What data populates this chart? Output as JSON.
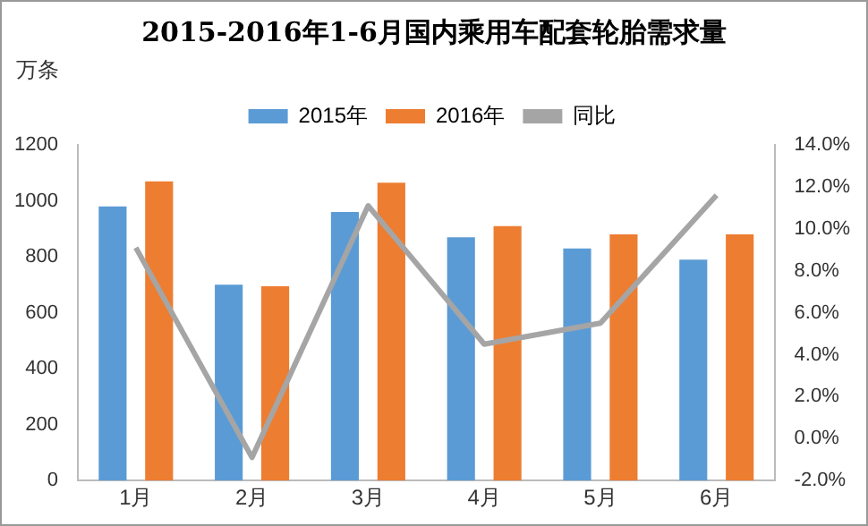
{
  "chart_data": {
    "type": "bar",
    "title": "2015-2016年1-6月国内乘用车配套轮胎需求量",
    "ylabel": "万条",
    "categories": [
      "1月",
      "2月",
      "3月",
      "4月",
      "5月",
      "6月"
    ],
    "series": [
      {
        "name": "2015年",
        "color": "#5b9bd5",
        "values": [
          980,
          700,
          960,
          870,
          830,
          790
        ]
      },
      {
        "name": "2016年",
        "color": "#ed7d31",
        "values": [
          1070,
          695,
          1065,
          910,
          880,
          880
        ]
      },
      {
        "name": "同比",
        "type": "line",
        "axis": "y2",
        "color": "#a5a5a5",
        "values": [
          9.1,
          -0.9,
          11.1,
          4.5,
          5.5,
          11.6
        ]
      }
    ],
    "ylim": [
      0,
      1200
    ],
    "yticks": [
      0,
      200,
      400,
      600,
      800,
      1000,
      1200
    ],
    "y2lim": [
      -2,
      14
    ],
    "y2ticks": [
      {
        "value": -2,
        "label": "-2.0%"
      },
      {
        "value": 0,
        "label": "0.0%"
      },
      {
        "value": 2,
        "label": "2.0%"
      },
      {
        "value": 4,
        "label": "4.0%"
      },
      {
        "value": 6,
        "label": "6.0%"
      },
      {
        "value": 8,
        "label": "8.0%"
      },
      {
        "value": 10,
        "label": "10.0%"
      },
      {
        "value": 12,
        "label": "12.0%"
      },
      {
        "value": 14,
        "label": "14.0%"
      }
    ],
    "grid": false,
    "legend": "top",
    "marker": "none"
  }
}
